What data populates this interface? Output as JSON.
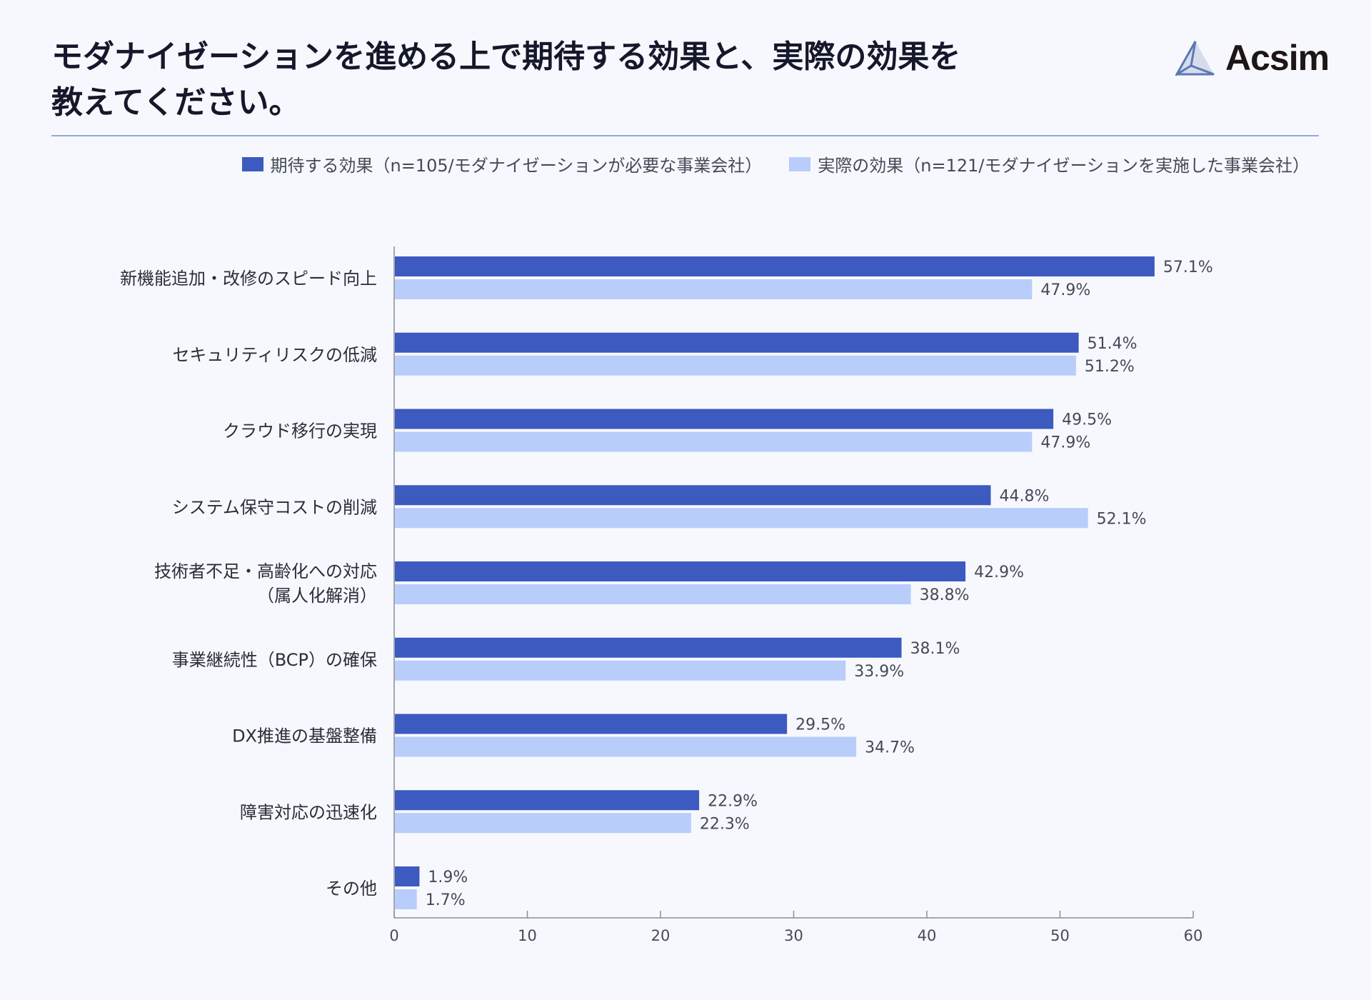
{
  "header": {
    "title_line1": "モダナイゼーションを進める上で期待する効果と、実際の効果を",
    "title_line2": "教えてください。",
    "logo_text": "Acsim"
  },
  "colors": {
    "expected": "#3c5abf",
    "actual": "#b8cdfa",
    "axis": "#8a8c99",
    "text": "#444a5a"
  },
  "chart_data": {
    "type": "bar",
    "orientation": "horizontal",
    "title": "モダナイゼーションを進める上で期待する効果と、実際の効果を教えてください。",
    "categories": [
      [
        "新機能追加・改修のスピード向上"
      ],
      [
        "セキュリティリスクの低減"
      ],
      [
        "クラウド移行の実現"
      ],
      [
        "システム保守コストの削減"
      ],
      [
        "技術者不足・高齢化への対応",
        "（属人化解消）"
      ],
      [
        "事業継続性（BCP）の確保"
      ],
      [
        "DX推進の基盤整備"
      ],
      [
        "障害対応の迅速化"
      ],
      [
        "その他"
      ]
    ],
    "series": [
      {
        "name": "期待する効果（n=105/モダナイゼーションが必要な事業会社）",
        "values": [
          57.1,
          51.4,
          49.5,
          44.8,
          42.9,
          38.1,
          29.5,
          22.9,
          1.9
        ]
      },
      {
        "name": "実際の効果（n=121/モダナイゼーションを実施した事業会社）",
        "values": [
          47.9,
          51.2,
          47.9,
          52.1,
          38.8,
          33.9,
          34.7,
          22.3,
          1.7
        ]
      }
    ],
    "value_suffix": "%",
    "xlim": [
      0,
      60
    ],
    "xticks": [
      0,
      10,
      20,
      30,
      40,
      50,
      60
    ],
    "xlabel": "",
    "ylabel": "",
    "grid": false,
    "legend_position": "top-right"
  }
}
